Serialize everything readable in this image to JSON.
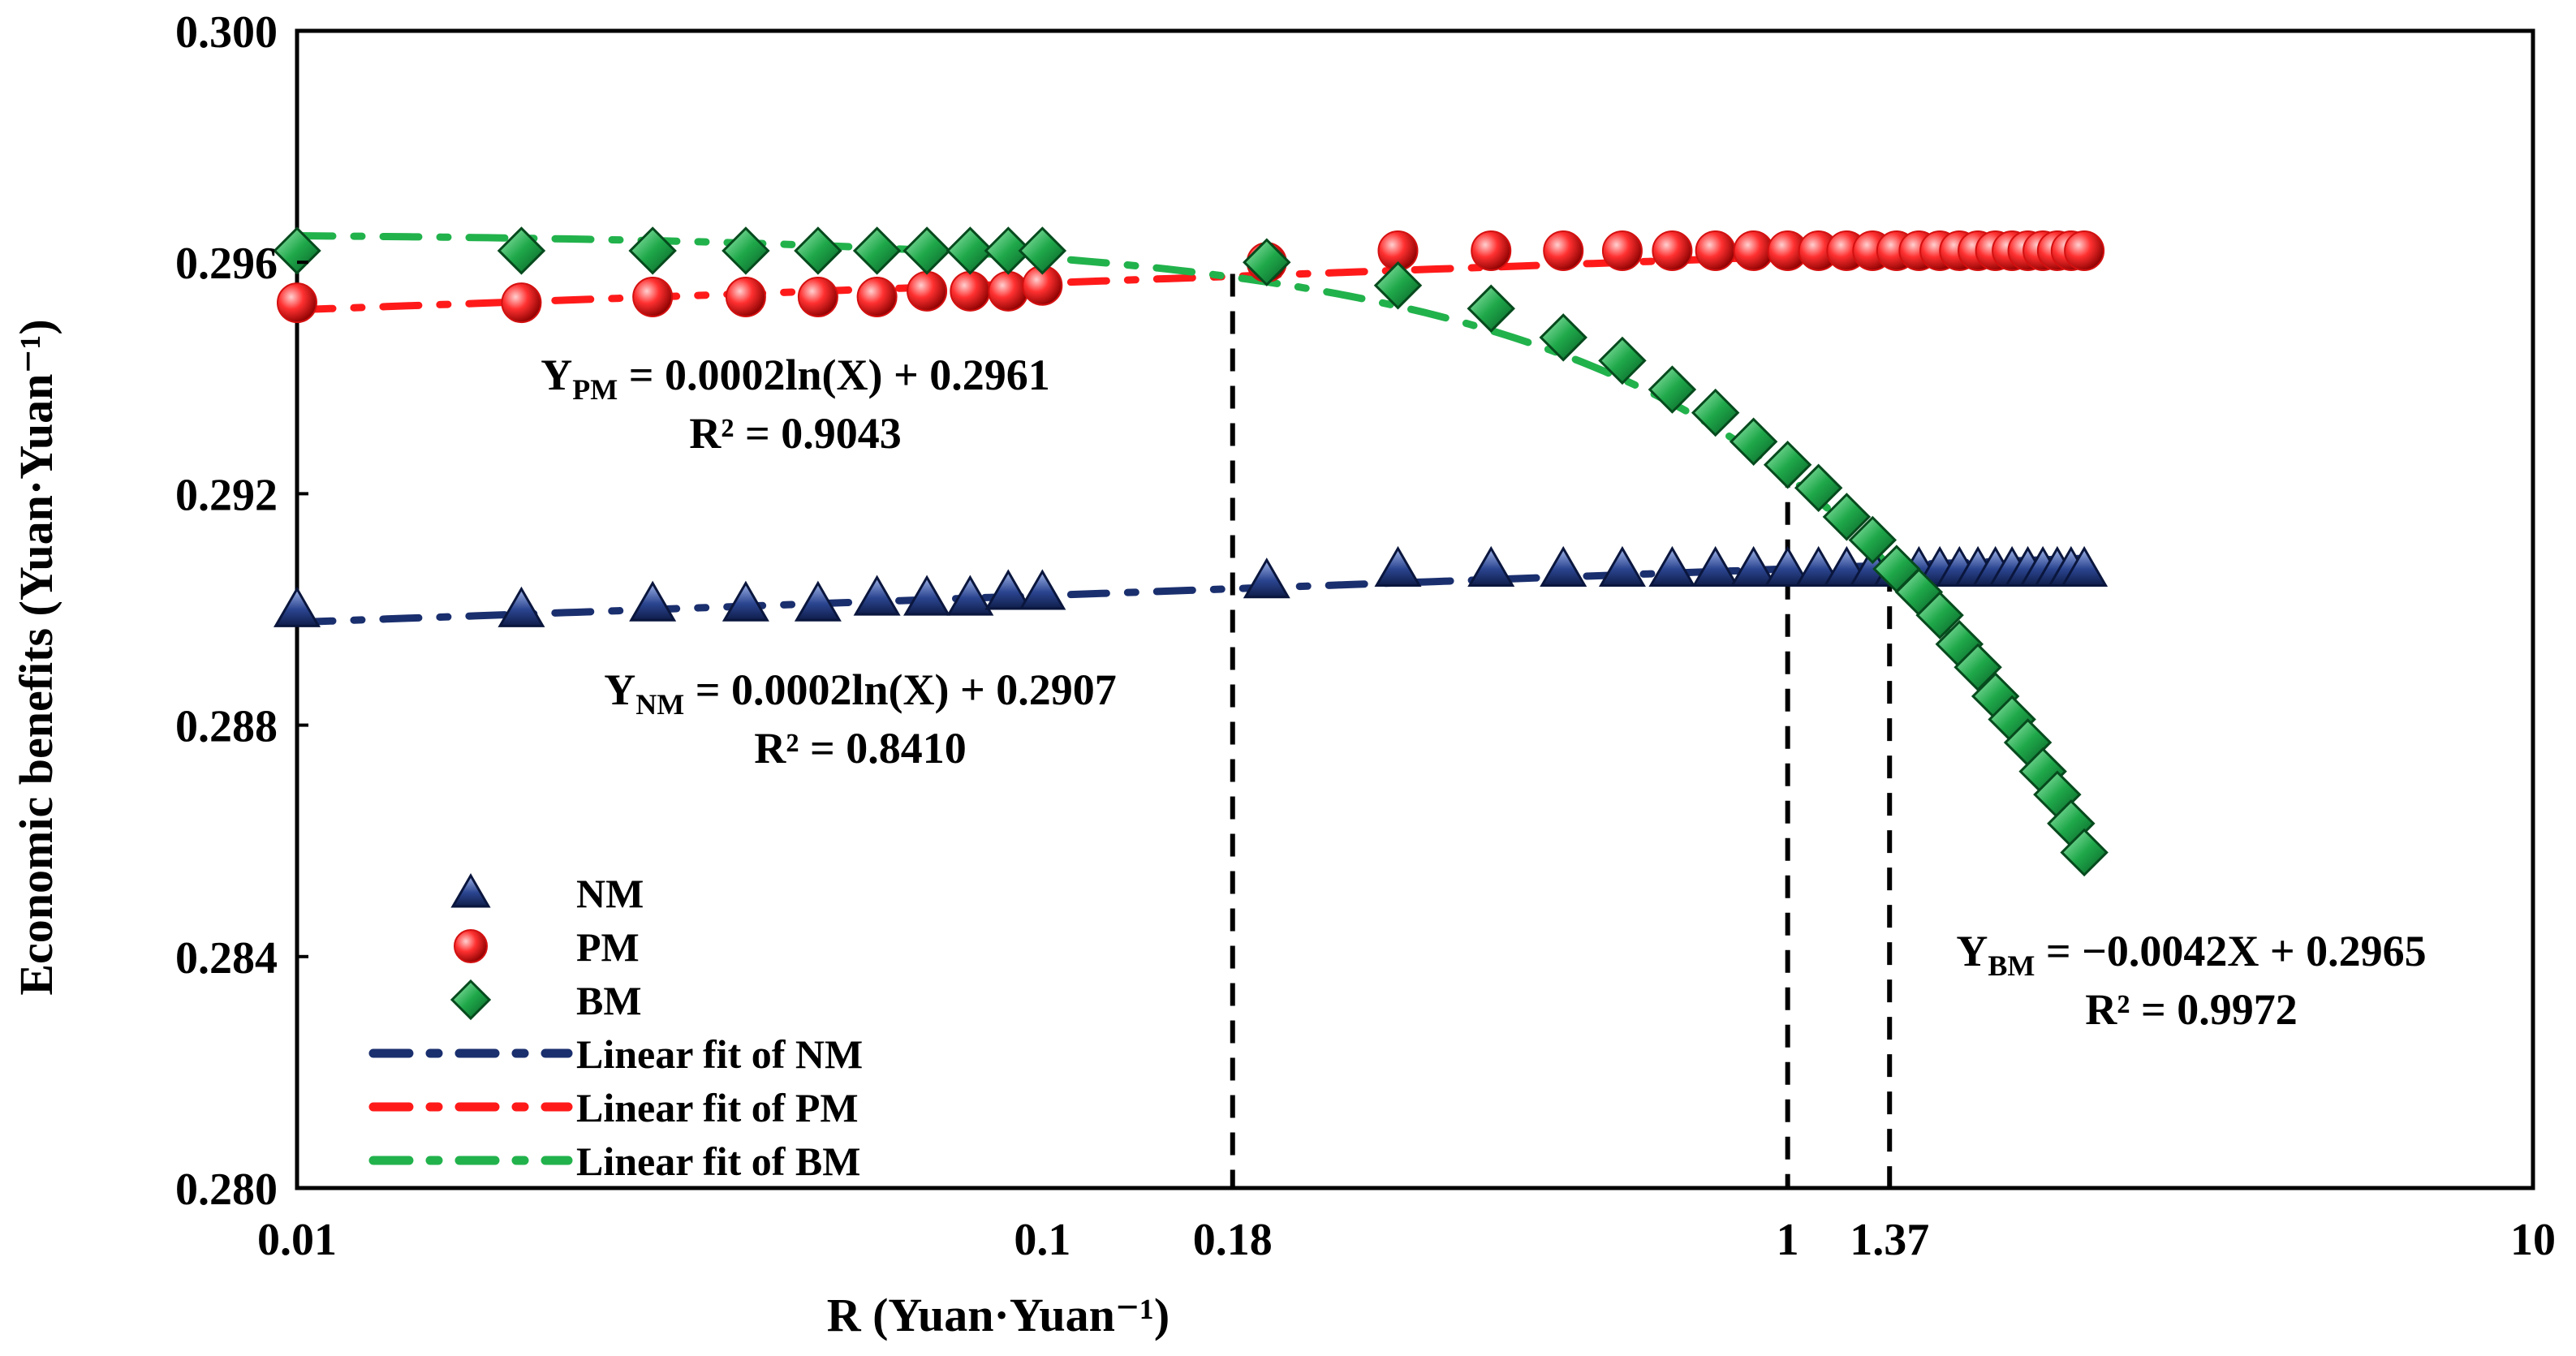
{
  "chart_data": {
    "type": "scatter",
    "x_scale": "log",
    "xlim": [
      0.01,
      10
    ],
    "ylim": [
      0.28,
      0.3
    ],
    "xlabel": "R (Yuan·Yuan⁻¹)",
    "ylabel": "Economic benefits (Yuan·Yuan⁻¹)",
    "x_ticks": [
      {
        "value": 0.01,
        "label": "0.01"
      },
      {
        "value": 0.1,
        "label": "0.1"
      },
      {
        "value": 0.18,
        "label": "0.18"
      },
      {
        "value": 1,
        "label": "1"
      },
      {
        "value": 1.37,
        "label": "1.37"
      },
      {
        "value": 10,
        "label": "10"
      }
    ],
    "y_ticks": [
      {
        "value": 0.28,
        "label": "0.280"
      },
      {
        "value": 0.284,
        "label": "0.284"
      },
      {
        "value": 0.288,
        "label": "0.288"
      },
      {
        "value": 0.292,
        "label": "0.292"
      },
      {
        "value": 0.296,
        "label": "0.296"
      },
      {
        "value": 0.3,
        "label": "0.300"
      }
    ],
    "x": [
      0.01,
      0.02,
      0.03,
      0.04,
      0.05,
      0.06,
      0.07,
      0.08,
      0.09,
      0.1,
      0.2,
      0.3,
      0.4,
      0.5,
      0.6,
      0.7,
      0.8,
      0.9,
      1.0,
      1.1,
      1.2,
      1.3,
      1.4,
      1.5,
      1.6,
      1.7,
      1.8,
      1.9,
      2.0,
      2.1,
      2.2,
      2.3,
      2.4,
      2.5
    ],
    "series": [
      {
        "name": "NM",
        "marker": "triangle",
        "color": "#1a2f6e",
        "light": "#7f97d6",
        "values": [
          0.29,
          0.29,
          0.2901,
          0.2901,
          0.2901,
          0.2902,
          0.2902,
          0.2902,
          0.2903,
          0.2903,
          0.2905,
          0.2907,
          0.2907,
          0.2907,
          0.2907,
          0.2907,
          0.2907,
          0.2907,
          0.2907,
          0.2907,
          0.2907,
          0.2907,
          0.2907,
          0.2907,
          0.2907,
          0.2907,
          0.2907,
          0.2907,
          0.2907,
          0.2907,
          0.2907,
          0.2907,
          0.2907,
          0.2907
        ]
      },
      {
        "name": "PM",
        "marker": "circle",
        "color": "#d41010",
        "light": "#ff8c8c",
        "values": [
          0.2953,
          0.2953,
          0.2954,
          0.2954,
          0.2954,
          0.2954,
          0.2955,
          0.2955,
          0.2955,
          0.2956,
          0.296,
          0.2962,
          0.2962,
          0.2962,
          0.2962,
          0.2962,
          0.2962,
          0.2962,
          0.2962,
          0.2962,
          0.2962,
          0.2962,
          0.2962,
          0.2962,
          0.2962,
          0.2962,
          0.2962,
          0.2962,
          0.2962,
          0.2962,
          0.2962,
          0.2962,
          0.2962,
          0.2962
        ]
      },
      {
        "name": "BM",
        "marker": "diamond",
        "color": "#0e7a35",
        "light": "#6fe08f",
        "values": [
          0.2962,
          0.2962,
          0.2962,
          0.2962,
          0.2962,
          0.2962,
          0.2962,
          0.2962,
          0.2962,
          0.2962,
          0.296,
          0.2956,
          0.2952,
          0.2947,
          0.2943,
          0.2938,
          0.2934,
          0.2929,
          0.2925,
          0.2921,
          0.2916,
          0.2912,
          0.2907,
          0.2903,
          0.2899,
          0.2894,
          0.289,
          0.2885,
          0.2881,
          0.2877,
          0.2872,
          0.2868,
          0.2863,
          0.2858
        ]
      }
    ],
    "fits": [
      {
        "name": "Linear fit of NM",
        "color": "#1a2f6e",
        "kind": "log",
        "a": 0.0002,
        "b": 0.2907,
        "x_range": [
          0.01,
          2.5
        ]
      },
      {
        "name": "Linear fit of PM",
        "color": "#ff1a1a",
        "kind": "log",
        "a": 0.0002,
        "b": 0.2961,
        "x_range": [
          0.01,
          2.5
        ]
      },
      {
        "name": "Linear fit of BM",
        "color": "#22b24c",
        "kind": "linear",
        "a": -0.0042,
        "b": 0.2965,
        "x_range": [
          0.01,
          2.5
        ]
      }
    ],
    "reference_lines": [
      {
        "x": 0.18,
        "y_top": 0.2958
      },
      {
        "x": 1.0,
        "y_top": 0.2925
      },
      {
        "x": 1.37,
        "y_top": 0.2907
      }
    ],
    "annotations": [
      {
        "id": "pm",
        "y_main": "Y",
        "y_sub": "PM",
        "rest": " = 0.0002ln(X) + 0.2961",
        "r2": "R² = 0.9043"
      },
      {
        "id": "nm",
        "y_main": "Y",
        "y_sub": "NM",
        "rest": " = 0.0002ln(X) + 0.2907",
        "r2": "R² = 0.8410"
      },
      {
        "id": "bm",
        "y_main": "Y",
        "y_sub": "BM",
        "rest": " = −0.0042X + 0.2965",
        "r2": "R² = 0.9972"
      }
    ],
    "legend": {
      "position": "bottom-left",
      "entries": [
        "NM",
        "PM",
        "BM",
        "Linear fit of NM",
        "Linear fit of PM",
        "Linear fit of BM"
      ]
    }
  }
}
